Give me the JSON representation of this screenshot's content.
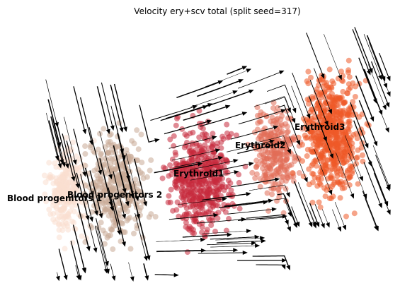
{
  "chart_data": {
    "type": "scatter",
    "title": "Velocity ery+scv total (split seed=317)",
    "xlabel": "",
    "ylabel": "",
    "grid": false,
    "axes_visible": false,
    "legend": "on-data",
    "series": [
      {
        "name": "Blood progenitors 1",
        "color": "#f9decf"
      },
      {
        "name": "Blood progenitors 2",
        "color": "#c9a995"
      },
      {
        "name": "Erythroid1",
        "color": "#c72a3d"
      },
      {
        "name": "Erythroid2",
        "color": "#e26d58"
      },
      {
        "name": "Erythroid3",
        "color": "#ef5a28"
      }
    ],
    "labels": [
      "Blood progenitors 1",
      "Blood progenitors 2",
      "Erythroid1",
      "Erythroid2",
      "Erythroid3"
    ],
    "streamlines": true,
    "stream_color": "#000000"
  }
}
